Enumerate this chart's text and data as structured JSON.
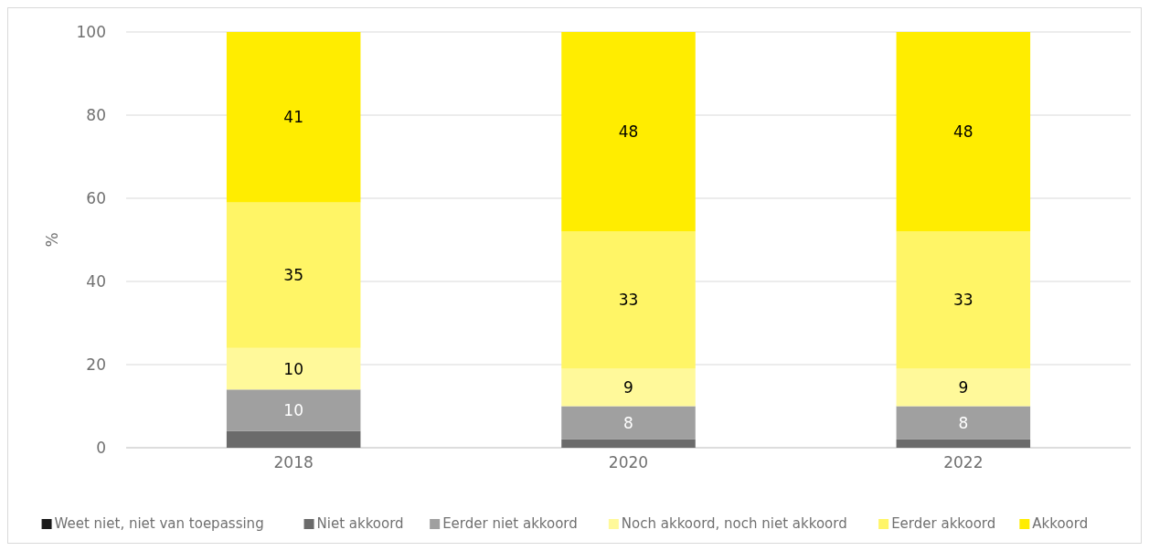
{
  "chart_data": {
    "type": "bar",
    "stacked": true,
    "categories": [
      "2018",
      "2020",
      "2022"
    ],
    "ylabel": "%",
    "ylim": [
      0,
      100
    ],
    "yticks": [
      0,
      20,
      40,
      60,
      80,
      100
    ],
    "grid": "y",
    "legend": "bottom",
    "series": [
      {
        "name": "Weet niet, niet van toepassing",
        "color": "#1a1a1a",
        "values": [
          0,
          0,
          0
        ],
        "value_labels": [
          null,
          null,
          null
        ]
      },
      {
        "name": "Niet akkoord",
        "color": "#6b6b6b",
        "values": [
          4,
          2,
          2
        ],
        "value_labels": [
          null,
          null,
          null
        ]
      },
      {
        "name": "Eerder niet akkoord",
        "color": "#a0a0a0",
        "values": [
          10,
          8,
          8
        ],
        "value_labels": [
          "10",
          "8",
          "8"
        ]
      },
      {
        "name": "Noch akkoord, noch niet akkoord",
        "color": "#fff99a",
        "values": [
          10,
          9,
          9
        ],
        "value_labels": [
          "10",
          "9",
          "9"
        ]
      },
      {
        "name": "Eerder akkoord",
        "color": "#fff566",
        "values": [
          35,
          33,
          33
        ],
        "value_labels": [
          "35",
          "33",
          "33"
        ]
      },
      {
        "name": "Akkoord",
        "color": "#ffed00",
        "values": [
          41,
          48,
          48
        ],
        "value_labels": [
          "41",
          "48",
          "48"
        ]
      }
    ]
  }
}
